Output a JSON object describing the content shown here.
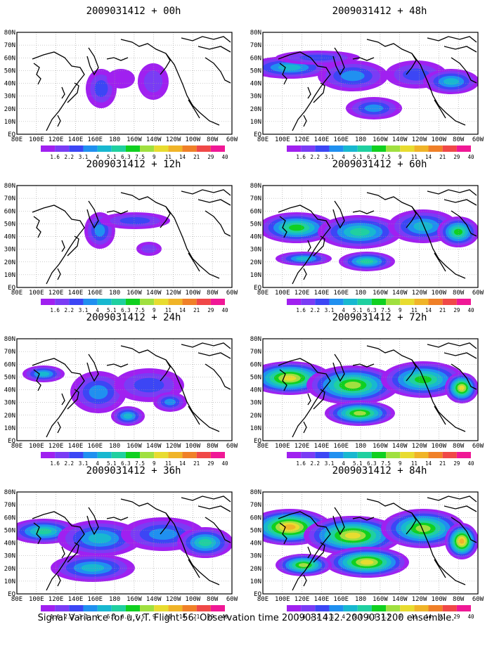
{
  "caption": "Signal Variance for u,v,T. Flight 56. Observation time 2009031412. 2009031200 ensemble.",
  "lat_labels": [
    "80N",
    "70N",
    "60N",
    "50N",
    "40N",
    "30N",
    "20N",
    "10N",
    "EQ"
  ],
  "lon_labels": [
    "80E",
    "100E",
    "120E",
    "140E",
    "160E",
    "180",
    "160W",
    "140W",
    "120W",
    "100W",
    "80W",
    "60W"
  ],
  "legend": {
    "labels": [
      "1.6",
      "2.2",
      "3.1",
      "4",
      "5.1",
      "6.3",
      "7.5",
      "9",
      "11",
      "14",
      "21",
      "29",
      "40"
    ],
    "colors": [
      "#a020f0",
      "#7a3cf5",
      "#3c46f5",
      "#2090f0",
      "#18b8d0",
      "#20d0a0",
      "#10d020",
      "#a0e040",
      "#e8dc30",
      "#f0b428",
      "#f08028",
      "#f04848",
      "#f01896"
    ]
  },
  "panels": [
    {
      "title": "2009031412 + 00h"
    },
    {
      "title": "2009031412 + 48h"
    },
    {
      "title": "2009031412 + 12h"
    },
    {
      "title": "2009031412 + 60h"
    },
    {
      "title": "2009031412 + 24h"
    },
    {
      "title": "2009031412 + 72h"
    },
    {
      "title": "2009031412 + 36h"
    },
    {
      "title": "2009031412 + 84h"
    }
  ]
}
